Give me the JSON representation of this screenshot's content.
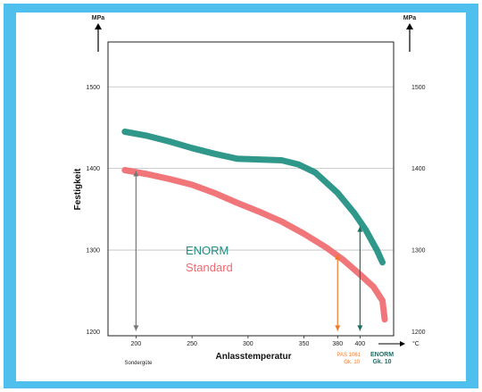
{
  "chart_data": {
    "type": "line",
    "ylabel": "Festigkeit",
    "xlabel": "Anlasstemperatur",
    "y_unit": "MPa",
    "x_unit": "°C",
    "xlim": [
      175,
      430
    ],
    "ylim": [
      1195,
      1555
    ],
    "x_ticks": [
      "200",
      "250",
      "300",
      "350",
      "380",
      "400"
    ],
    "y_ticks": [
      "1200",
      "1300",
      "1400",
      "1500"
    ],
    "series": [
      {
        "name": "ENORM",
        "color": "#1e8f80",
        "x": [
          190,
          210,
          230,
          250,
          270,
          290,
          310,
          330,
          345,
          360,
          380,
          395,
          405,
          415,
          420
        ],
        "y": [
          1445,
          1440,
          1433,
          1425,
          1418,
          1412,
          1411,
          1410,
          1405,
          1395,
          1370,
          1345,
          1325,
          1300,
          1285
        ]
      },
      {
        "name": "Standard",
        "color": "#f06a6f",
        "x": [
          190,
          210,
          230,
          250,
          270,
          290,
          310,
          330,
          350,
          370,
          385,
          400,
          412,
          420,
          422
        ],
        "y": [
          1398,
          1393,
          1387,
          1380,
          1370,
          1358,
          1347,
          1335,
          1320,
          1303,
          1288,
          1270,
          1255,
          1238,
          1215
        ]
      }
    ],
    "legend": {
      "position": "center",
      "items": [
        "ENORM",
        "Standard"
      ]
    },
    "annotations": {
      "sonderguete": "Sondergüte",
      "pas_label_1": "PAS 1061",
      "pas_label_2": "Gk. 10",
      "enorm_label_1": "ENORM",
      "enorm_label_2": "Gk. 10",
      "arrows": [
        {
          "x": 200,
          "from": 1200,
          "to": 1398,
          "color": "#777777",
          "double": true
        },
        {
          "x": 380,
          "from": 1200,
          "to": 1296,
          "color": "#f0782a",
          "double": false
        },
        {
          "x": 400,
          "from": 1200,
          "to": 1330,
          "color": "#1a6e63",
          "double": true
        }
      ]
    },
    "grid": true,
    "colors": {
      "frame": "#4fbfee",
      "grid": "#bdbdbd"
    }
  }
}
